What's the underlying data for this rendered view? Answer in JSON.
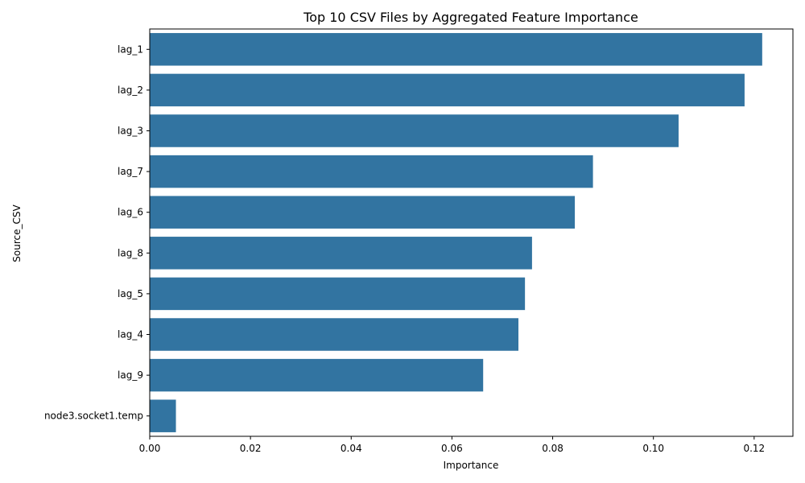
{
  "chart_data": {
    "type": "bar",
    "orientation": "horizontal",
    "title": "Top 10 CSV Files by Aggregated Feature Importance",
    "xlabel": "Importance",
    "ylabel": "Source_CSV",
    "categories": [
      "lag_1",
      "lag_2",
      "lag_3",
      "lag_7",
      "lag_6",
      "lag_8",
      "lag_5",
      "lag_4",
      "lag_9",
      "node3.socket1.temp"
    ],
    "values": [
      0.1216,
      0.1181,
      0.105,
      0.088,
      0.0844,
      0.0759,
      0.0745,
      0.0732,
      0.0662,
      0.0052
    ],
    "xlim": [
      0,
      0.1277
    ],
    "xticks": [
      0.0,
      0.02,
      0.04,
      0.06,
      0.08,
      0.1,
      0.12
    ],
    "xtick_labels": [
      "0.00",
      "0.02",
      "0.04",
      "0.06",
      "0.08",
      "0.10",
      "0.12"
    ],
    "bar_color": "#3274a1",
    "grid": false,
    "legend": "none"
  }
}
